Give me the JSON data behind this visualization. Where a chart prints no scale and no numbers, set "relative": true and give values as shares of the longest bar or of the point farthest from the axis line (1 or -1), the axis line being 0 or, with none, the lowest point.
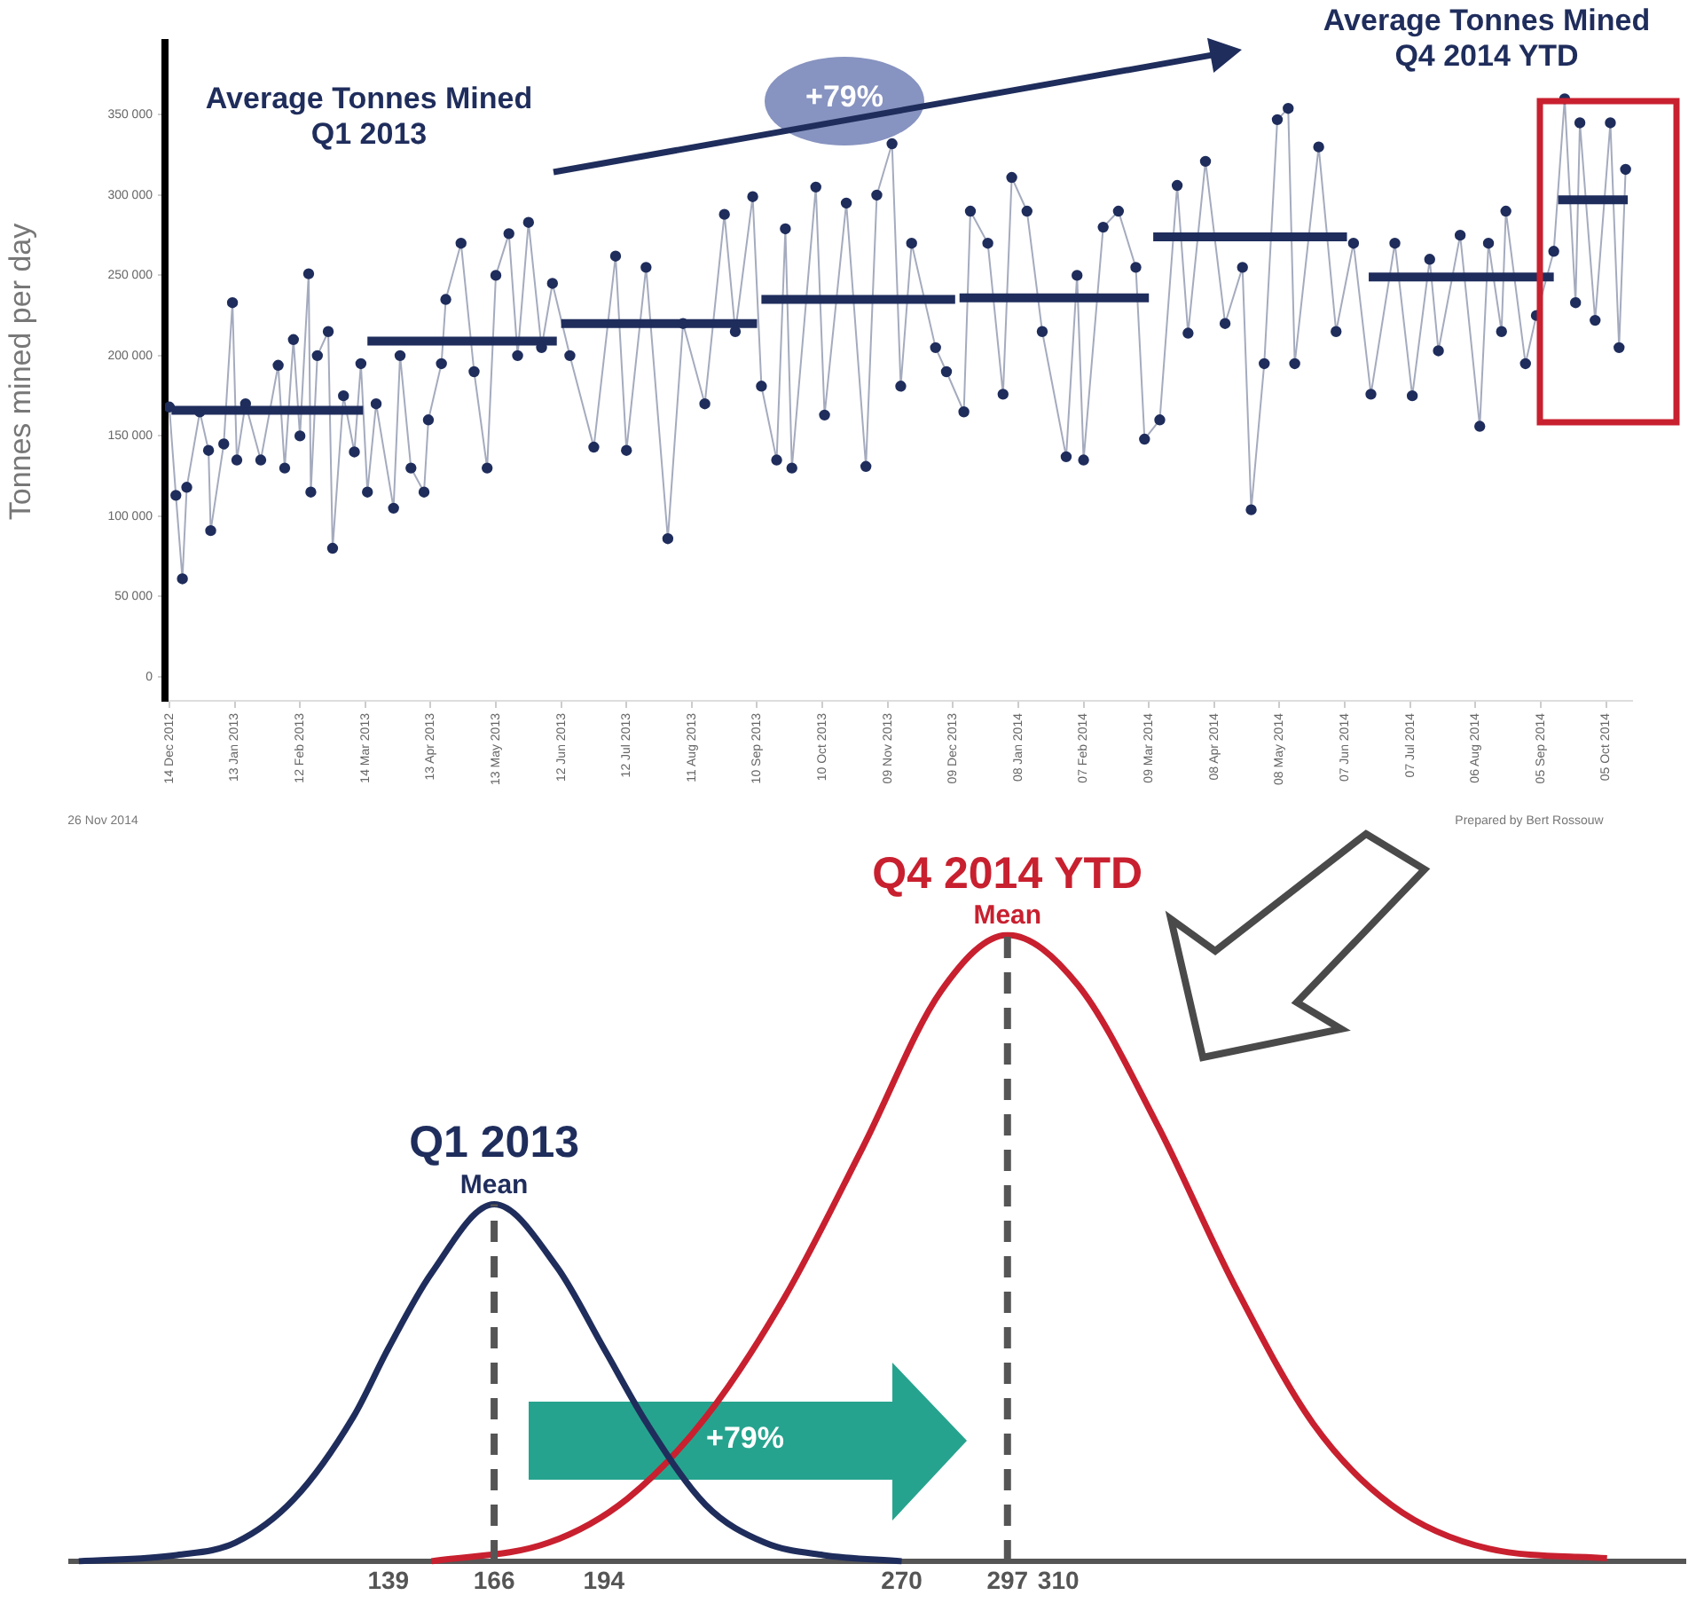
{
  "chart_data": [
    {
      "type": "line",
      "ylabel": "Tonnes mined per day",
      "xlim": [
        "2012-12-12",
        "2014-10-17"
      ],
      "ylim": [
        -15000,
        395000
      ],
      "xticks": [
        {
          "value": "2012-12-14",
          "label": "14 Dec 2012"
        },
        {
          "value": "2013-01-13",
          "label": "13 Jan 2013"
        },
        {
          "value": "2013-02-12",
          "label": "12 Feb 2013"
        },
        {
          "value": "2013-03-14",
          "label": "14 Mar 2013"
        },
        {
          "value": "2013-04-13",
          "label": "13 Apr 2013"
        },
        {
          "value": "2013-05-13",
          "label": "13 May 2013"
        },
        {
          "value": "2013-06-12",
          "label": "12 Jun 2013"
        },
        {
          "value": "2013-07-12",
          "label": "12 Jul 2013"
        },
        {
          "value": "2013-08-11",
          "label": "11 Aug 2013"
        },
        {
          "value": "2013-09-10",
          "label": "10 Sep 2013"
        },
        {
          "value": "2013-10-10",
          "label": "10 Oct 2013"
        },
        {
          "value": "2013-11-09",
          "label": "09 Nov 2013"
        },
        {
          "value": "2013-12-09",
          "label": "09 Dec 2013"
        },
        {
          "value": "2014-01-08",
          "label": "08 Jan 2014"
        },
        {
          "value": "2014-02-07",
          "label": "07 Feb 2014"
        },
        {
          "value": "2014-03-09",
          "label": "09 Mar 2014"
        },
        {
          "value": "2014-04-08",
          "label": "08 Apr 2014"
        },
        {
          "value": "2014-05-08",
          "label": "08 May 2014"
        },
        {
          "value": "2014-06-07",
          "label": "07 Jun 2014"
        },
        {
          "value": "2014-07-07",
          "label": "07 Jul 2014"
        },
        {
          "value": "2014-08-06",
          "label": "06 Aug 2014"
        },
        {
          "value": "2014-09-05",
          "label": "05 Sep 2014"
        },
        {
          "value": "2014-10-05",
          "label": "05 Oct 2014"
        }
      ],
      "yticks": [
        0,
        {
          "value": 50000,
          "label": "50 000"
        },
        {
          "value": 100000,
          "label": "100 000"
        },
        {
          "value": 150000,
          "label": "150 000"
        },
        {
          "value": 200000,
          "label": "200 000"
        },
        {
          "value": 250000,
          "label": "250 000"
        },
        {
          "value": 300000,
          "label": "300 000"
        },
        {
          "value": 350000,
          "label": "350 000"
        }
      ],
      "grid": false,
      "legend": false,
      "marker": "circle",
      "annotations": [
        "Average Tonnes Mined Q1 2013",
        "Average Tonnes Mined Q4 2014 YTD",
        "+79%",
        "26 Nov 2014",
        "Prepared by Bert Rossouw"
      ],
      "series": [
        {
          "color": "#1f2d5c",
          "x": [
            "2012-12-14",
            "2012-12-17",
            "2012-12-20",
            "2012-12-22",
            "2012-12-28",
            "2013-01-01",
            "2013-01-02",
            "2013-01-08",
            "2013-01-12",
            "2013-01-14",
            "2013-01-18",
            "2013-01-25",
            "2013-02-02",
            "2013-02-05",
            "2013-02-09",
            "2013-02-12",
            "2013-02-16",
            "2013-02-17",
            "2013-02-20",
            "2013-02-25",
            "2013-02-27",
            "2013-03-04",
            "2013-03-09",
            "2013-03-12",
            "2013-03-15",
            "2013-03-19",
            "2013-03-27",
            "2013-03-30",
            "2013-04-04",
            "2013-04-10",
            "2013-04-12",
            "2013-04-18",
            "2013-04-20",
            "2013-04-27",
            "2013-05-03",
            "2013-05-09",
            "2013-05-13",
            "2013-05-19",
            "2013-05-23",
            "2013-05-28",
            "2013-06-03",
            "2013-06-08",
            "2013-06-16",
            "2013-06-27",
            "2013-07-07",
            "2013-07-12",
            "2013-07-21",
            "2013-07-31",
            "2013-08-07",
            "2013-08-17",
            "2013-08-26",
            "2013-08-31",
            "2013-09-08",
            "2013-09-12",
            "2013-09-19",
            "2013-09-23",
            "2013-09-26",
            "2013-10-07",
            "2013-10-11",
            "2013-10-21",
            "2013-10-30",
            "2013-11-04",
            "2013-11-11",
            "2013-11-15",
            "2013-11-20",
            "2013-12-01",
            "2013-12-06",
            "2013-12-14",
            "2013-12-17",
            "2013-12-25",
            "2014-01-01",
            "2014-01-05",
            "2014-01-12",
            "2014-01-19",
            "2014-01-30",
            "2014-02-04",
            "2014-02-07",
            "2014-02-16",
            "2014-02-23",
            "2014-03-03",
            "2014-03-07",
            "2014-03-14",
            "2014-03-22",
            "2014-03-27",
            "2014-04-04",
            "2014-04-13",
            "2014-04-21",
            "2014-04-25",
            "2014-05-01",
            "2014-05-07",
            "2014-05-12",
            "2014-05-15",
            "2014-05-26",
            "2014-06-03",
            "2014-06-11",
            "2014-06-19",
            "2014-06-30",
            "2014-07-08",
            "2014-07-16",
            "2014-07-20",
            "2014-07-30",
            "2014-08-08",
            "2014-08-12",
            "2014-08-18",
            "2014-08-20",
            "2014-08-29",
            "2014-09-03",
            "2014-09-11",
            "2014-09-16",
            "2014-09-21",
            "2014-09-23",
            "2014-09-30",
            "2014-10-07",
            "2014-10-11",
            "2014-10-14"
          ],
          "values": [
            168000,
            113000,
            61000,
            118000,
            165000,
            141000,
            91000,
            145000,
            233000,
            135000,
            170000,
            135000,
            194000,
            130000,
            210000,
            150000,
            251000,
            115000,
            200000,
            215000,
            80000,
            175000,
            140000,
            195000,
            115000,
            170000,
            105000,
            200000,
            130000,
            115000,
            160000,
            195000,
            235000,
            270000,
            190000,
            130000,
            250000,
            276000,
            200000,
            283000,
            205000,
            245000,
            200000,
            143000,
            262000,
            141000,
            255000,
            86000,
            220000,
            170000,
            288000,
            215000,
            299000,
            181000,
            135000,
            279000,
            130000,
            305000,
            163000,
            295000,
            131000,
            300000,
            332000,
            181000,
            270000,
            205000,
            190000,
            165000,
            290000,
            270000,
            176000,
            311000,
            290000,
            215000,
            137000,
            250000,
            135000,
            280000,
            290000,
            255000,
            148000,
            160000,
            306000,
            214000,
            321000,
            220000,
            255000,
            104000,
            195000,
            347000,
            354000,
            195000,
            330000,
            215000,
            270000,
            176000,
            270000,
            175000,
            260000,
            203000,
            275000,
            156000,
            270000,
            215000,
            290000,
            195000,
            225000,
            265000,
            360000,
            233000,
            345000,
            222000,
            345000,
            205000,
            316000
          ]
        },
        {
          "color": "#1f2d5c",
          "marker": "none",
          "x": [
            "2012-12-15",
            "2013-03-13",
            "2013-03-14",
            "2013-03-15",
            "2013-06-10",
            "2013-06-11",
            "2013-06-12",
            "2013-09-10",
            "2013-09-11",
            "2013-09-12",
            "2013-12-10",
            "2013-12-11",
            "2013-12-12",
            "2014-03-09",
            "2014-03-10",
            "2014-03-11",
            "2014-06-08",
            "2014-06-13",
            "2014-06-18",
            "2014-09-11",
            "2014-09-12",
            "2014-09-13",
            "2014-10-15"
          ],
          "values": [
            166000,
            166000,
            null,
            209000,
            209000,
            null,
            220000,
            220000,
            null,
            235000,
            235000,
            null,
            236000,
            236000,
            null,
            274000,
            274000,
            null,
            249000,
            249000,
            null,
            297000,
            297000
          ]
        }
      ]
    },
    {
      "type": "line",
      "xlim": [
        58,
        470
      ],
      "xticks": [
        139,
        166,
        194,
        270,
        297,
        310
      ],
      "relative": true,
      "grid": false,
      "legend": false,
      "marker": "none",
      "ref_lines": [
        {
          "axis": "x",
          "value": 166,
          "label": "Mean",
          "color": "#555555",
          "line_style": "dashed"
        },
        {
          "axis": "x",
          "value": 297,
          "label": "Mean",
          "color": "#555555",
          "line_style": "dashed"
        }
      ],
      "annotations": [
        "+79%"
      ],
      "series": [
        {
          "name": "Q1 2013",
          "color": "#1f2d5c",
          "x": [
            60,
            85,
            100,
            115,
            130,
            139,
            150,
            166,
            182,
            194,
            205,
            220,
            235,
            250,
            270
          ],
          "values": [
            0,
            0.01,
            0.03,
            0.1,
            0.23,
            0.34,
            0.46,
            0.57,
            0.47,
            0.34,
            0.22,
            0.09,
            0.03,
            0.01,
            0
          ]
        },
        {
          "name": "Q4 2014 YTD",
          "color": "#c8202f",
          "x": [
            150,
            180,
            200,
            220,
            240,
            260,
            280,
            297,
            315,
            335,
            355,
            375,
            395,
            420,
            450
          ],
          "values": [
            0,
            0.03,
            0.1,
            0.23,
            0.42,
            0.66,
            0.91,
            1,
            0.92,
            0.7,
            0.44,
            0.22,
            0.09,
            0.02,
            0.005
          ]
        }
      ]
    }
  ]
}
